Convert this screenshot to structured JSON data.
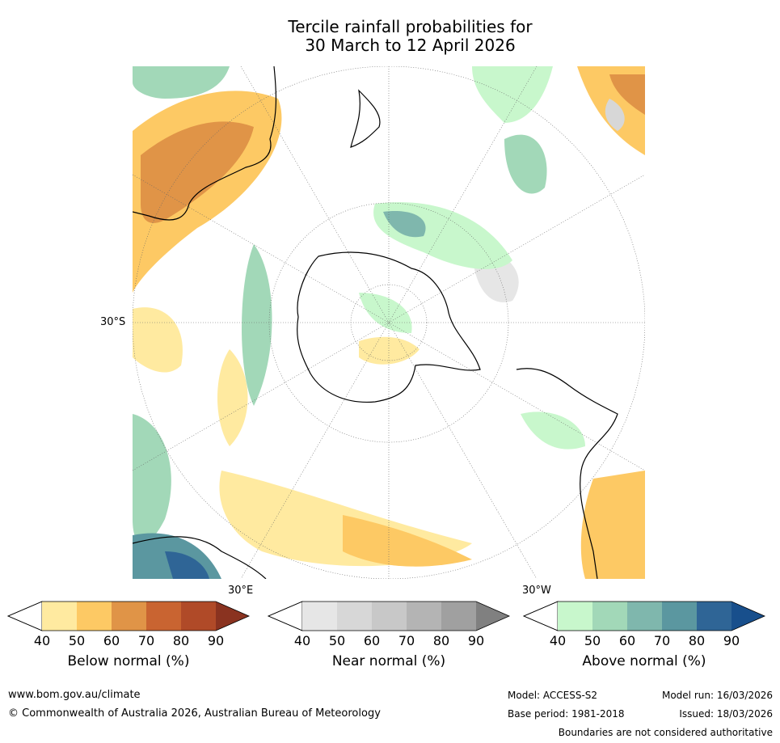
{
  "title": {
    "line1": "Tercile rainfall probabilities for",
    "line2": "30 March to 12 April 2026"
  },
  "map": {
    "lat_label": "30°S",
    "lon_label_east": "30°E",
    "lon_label_west": "30°W"
  },
  "legends": [
    {
      "label": "Below normal (%)",
      "ticks": [
        "40",
        "50",
        "60",
        "70",
        "80",
        "90"
      ],
      "colors": [
        "#ffeaa0",
        "#fdc964",
        "#e09447",
        "#c96431",
        "#b04a28",
        "#8a3320"
      ]
    },
    {
      "label": "Near normal (%)",
      "ticks": [
        "40",
        "50",
        "60",
        "70",
        "80",
        "90"
      ],
      "colors": [
        "#e6e6e6",
        "#d7d7d7",
        "#c8c8c8",
        "#b4b4b4",
        "#a0a0a0",
        "#808080"
      ]
    },
    {
      "label": "Above normal (%)",
      "ticks": [
        "40",
        "50",
        "60",
        "70",
        "80",
        "90"
      ],
      "colors": [
        "#c8f7cc",
        "#a2d8b8",
        "#7fb7ad",
        "#5b97a0",
        "#2f6596",
        "#184f8c"
      ]
    }
  ],
  "footer": {
    "url": "www.bom.gov.au/climate",
    "copyright": "© Commonwealth of Australia 2026, Australian Bureau of Meteorology",
    "model": "Model: ACCESS-S2",
    "base_period": "Base period: 1981-2018",
    "model_run": "Model run: 16/03/2026",
    "issued": "Issued: 18/03/2026",
    "disclaimer": "Boundaries are not considered authoritative"
  }
}
